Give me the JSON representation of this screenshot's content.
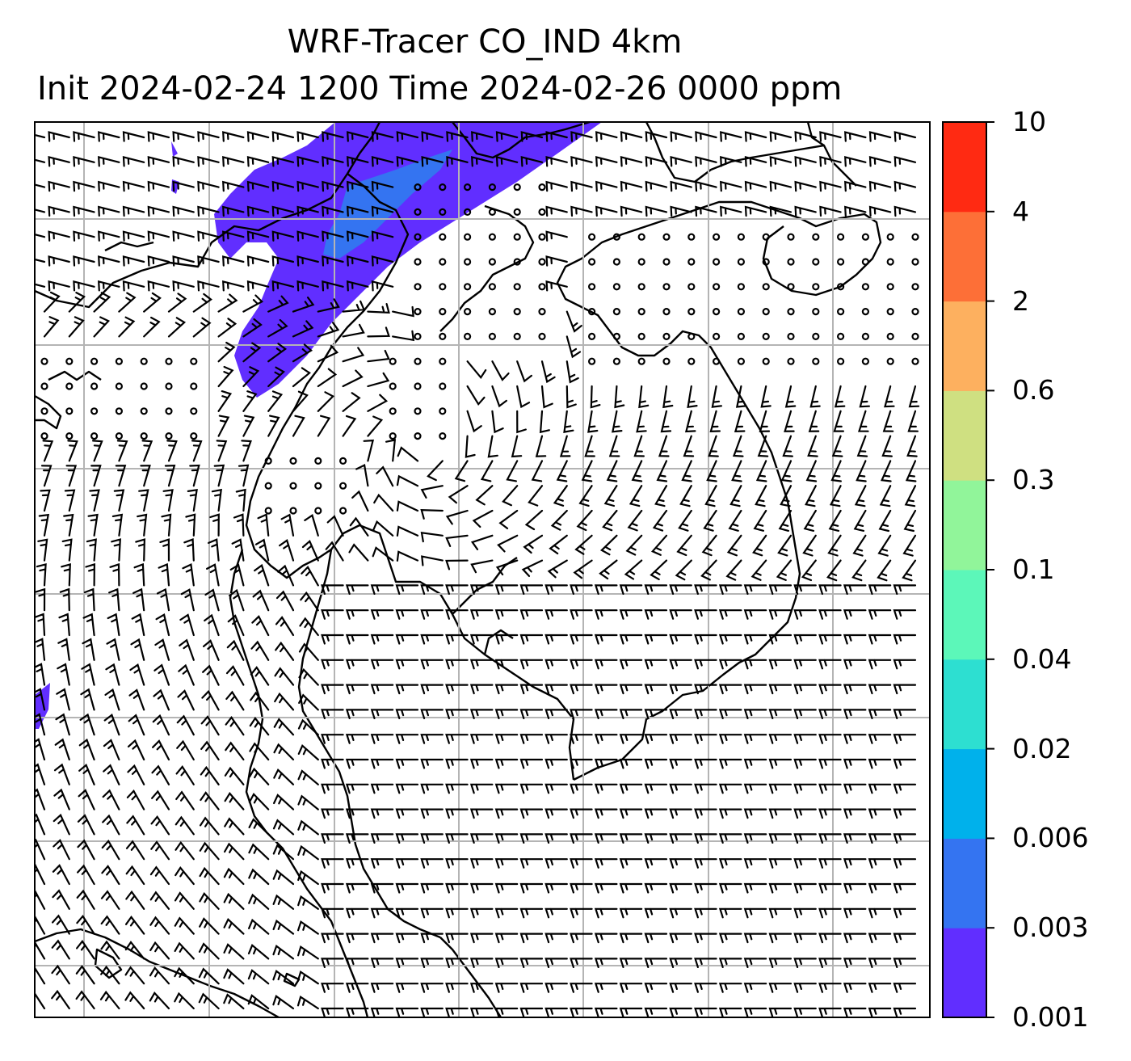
{
  "title": {
    "line1": "WRF-Tracer CO_IND 4km",
    "line2": "Init 2024-02-24 1200 Time 2024-02-26 0000 ppm"
  },
  "colorbar": {
    "labels": [
      "0.001",
      "0.003",
      "0.006",
      "0.02",
      "0.04",
      "0.1",
      "0.3",
      "0.6",
      "2",
      "4",
      "10"
    ],
    "colors": [
      "#612eff",
      "#3474f1",
      "#00b1eb",
      "#2ddfd1",
      "#5cf7b9",
      "#91f59a",
      "#cfe081",
      "#fdb05f",
      "#fd6f37",
      "#ff2a12"
    ]
  },
  "map": {
    "overlay": "wind-barbs",
    "tracer_plume_color": "#612eff",
    "tracer_core_color": "#3474f1"
  }
}
